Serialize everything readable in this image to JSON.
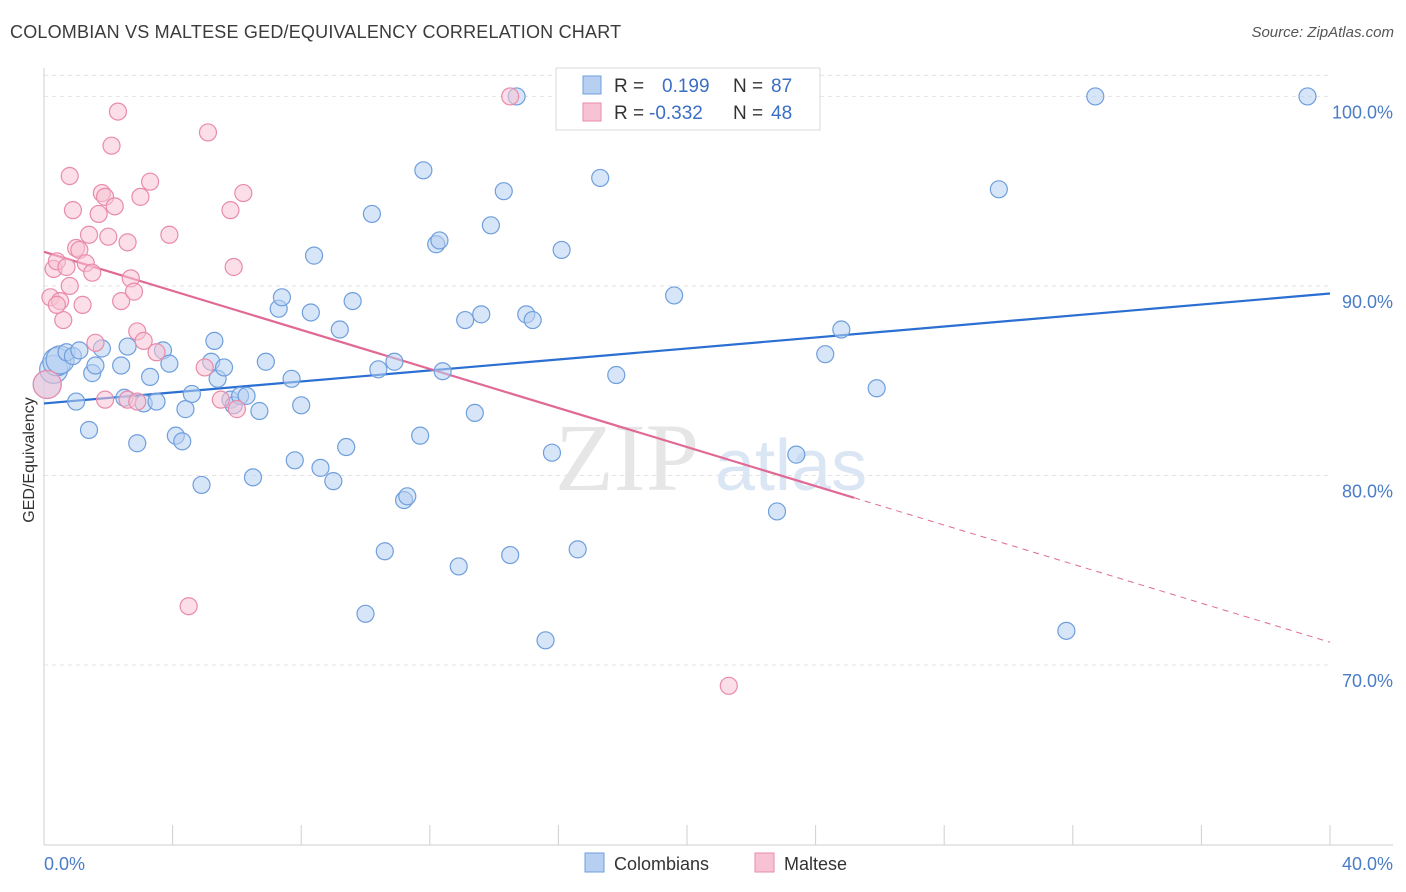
{
  "title": "COLOMBIAN VS MALTESE GED/EQUIVALENCY CORRELATION CHART",
  "source": "Source: ZipAtlas.com",
  "watermark": {
    "zip": "ZIP",
    "atlas": "atlas"
  },
  "colors": {
    "blue": "#6f9fdc",
    "blue_fill": "#b7d0f2",
    "blue_line": "#2a6fd1",
    "pink": "#e98bab",
    "pink_fill": "#f7c3d4",
    "pink_line": "#e06a95",
    "grid": "#e3e3e3",
    "tick": "#4a7cc7"
  },
  "legend": {
    "rows": [
      {
        "r_label": "R =",
        "r_value": "0.199",
        "n_label": "N =",
        "n_value": "87",
        "series": "Colombians"
      },
      {
        "r_label": "R =",
        "r_value": "-0.332",
        "n_label": "N =",
        "n_value": "48",
        "series": "Maltese"
      }
    ]
  },
  "chart_data": {
    "type": "scatter",
    "title": "COLOMBIAN VS MALTESE GED/EQUIVALENCY CORRELATION CHART",
    "xlabel": "",
    "ylabel": "GED/Equivalency",
    "xlim": [
      0,
      40
    ],
    "ylim": [
      60.5,
      101.5
    ],
    "x_tick_labels": [
      {
        "value": 0,
        "label": "0.0%"
      },
      {
        "value": 40,
        "label": "40.0%"
      }
    ],
    "y_tick_labels": [
      {
        "value": 100,
        "label": "100.0%"
      },
      {
        "value": 90,
        "label": "90.0%"
      },
      {
        "value": 80,
        "label": "80.0%"
      },
      {
        "value": 70,
        "label": "70.0%"
      }
    ],
    "x_minor_ticks": [
      0,
      4,
      8,
      12,
      16,
      20,
      24,
      28,
      32,
      36,
      40
    ],
    "grid": true,
    "legend_position": "top-center",
    "series": [
      {
        "name": "Colombians",
        "color": "#6f9fdc",
        "trend": {
          "x": [
            0,
            40
          ],
          "y": [
            83.8,
            89.6
          ],
          "dashed_from": null
        },
        "points": [
          [
            0.1,
            84.8
          ],
          [
            0.3,
            85.6
          ],
          [
            0.4,
            86.0
          ],
          [
            0.5,
            86.1
          ],
          [
            0.7,
            86.5
          ],
          [
            0.9,
            86.3
          ],
          [
            1.0,
            83.9
          ],
          [
            1.1,
            86.6
          ],
          [
            1.4,
            82.4
          ],
          [
            1.5,
            85.4
          ],
          [
            1.6,
            85.8
          ],
          [
            1.8,
            86.7
          ],
          [
            2.4,
            85.8
          ],
          [
            2.5,
            84.1
          ],
          [
            2.6,
            86.8
          ],
          [
            2.9,
            81.7
          ],
          [
            3.1,
            83.8
          ],
          [
            3.3,
            85.2
          ],
          [
            3.5,
            83.9
          ],
          [
            3.7,
            86.6
          ],
          [
            3.9,
            85.9
          ],
          [
            4.1,
            82.1
          ],
          [
            4.3,
            81.8
          ],
          [
            4.4,
            83.5
          ],
          [
            4.6,
            84.3
          ],
          [
            4.9,
            79.5
          ],
          [
            5.2,
            86.0
          ],
          [
            5.3,
            87.1
          ],
          [
            5.4,
            85.1
          ],
          [
            5.6,
            85.7
          ],
          [
            5.8,
            84.0
          ],
          [
            5.9,
            83.7
          ],
          [
            6.1,
            84.2
          ],
          [
            6.3,
            84.2
          ],
          [
            6.5,
            79.9
          ],
          [
            6.7,
            83.4
          ],
          [
            6.9,
            86.0
          ],
          [
            7.3,
            88.8
          ],
          [
            7.4,
            89.4
          ],
          [
            7.7,
            85.1
          ],
          [
            7.8,
            80.8
          ],
          [
            8.0,
            83.7
          ],
          [
            8.3,
            88.6
          ],
          [
            8.4,
            91.6
          ],
          [
            8.6,
            80.4
          ],
          [
            9.0,
            79.7
          ],
          [
            9.2,
            87.7
          ],
          [
            9.4,
            81.5
          ],
          [
            9.6,
            89.2
          ],
          [
            10.0,
            72.7
          ],
          [
            10.2,
            93.8
          ],
          [
            10.4,
            85.6
          ],
          [
            10.6,
            76.0
          ],
          [
            10.9,
            86.0
          ],
          [
            11.2,
            78.7
          ],
          [
            11.3,
            78.9
          ],
          [
            11.7,
            82.1
          ],
          [
            11.8,
            96.1
          ],
          [
            12.2,
            92.2
          ],
          [
            12.3,
            92.4
          ],
          [
            12.4,
            85.5
          ],
          [
            12.9,
            75.2
          ],
          [
            13.1,
            88.2
          ],
          [
            13.4,
            83.3
          ],
          [
            13.6,
            88.5
          ],
          [
            13.9,
            93.2
          ],
          [
            14.3,
            95.0
          ],
          [
            14.5,
            75.8
          ],
          [
            14.7,
            100.0
          ],
          [
            15.0,
            88.5
          ],
          [
            15.2,
            88.2
          ],
          [
            15.6,
            71.3
          ],
          [
            15.8,
            81.2
          ],
          [
            16.1,
            91.9
          ],
          [
            16.6,
            76.1
          ],
          [
            17.3,
            95.7
          ],
          [
            17.8,
            85.3
          ],
          [
            19.6,
            89.5
          ],
          [
            22.8,
            78.1
          ],
          [
            23.4,
            81.1
          ],
          [
            24.3,
            86.4
          ],
          [
            24.8,
            87.7
          ],
          [
            25.9,
            84.6
          ],
          [
            29.7,
            95.1
          ],
          [
            31.8,
            71.8
          ],
          [
            32.7,
            100.0
          ],
          [
            39.3,
            100.0
          ]
        ]
      },
      {
        "name": "Maltese",
        "color": "#e98bab",
        "trend": {
          "x": [
            0,
            40
          ],
          "y": [
            91.8,
            71.2
          ],
          "dashed_from": 25.2
        },
        "points": [
          [
            0.1,
            84.8
          ],
          [
            0.2,
            89.4
          ],
          [
            0.3,
            90.9
          ],
          [
            0.4,
            91.3
          ],
          [
            0.5,
            89.2
          ],
          [
            0.6,
            88.2
          ],
          [
            0.7,
            91.0
          ],
          [
            0.8,
            90.0
          ],
          [
            0.8,
            95.8
          ],
          [
            0.9,
            94.0
          ],
          [
            1.0,
            92.0
          ],
          [
            1.1,
            91.9
          ],
          [
            1.2,
            89.0
          ],
          [
            1.3,
            91.2
          ],
          [
            1.4,
            92.7
          ],
          [
            1.5,
            90.7
          ],
          [
            1.6,
            87.0
          ],
          [
            1.7,
            93.8
          ],
          [
            1.8,
            94.9
          ],
          [
            1.9,
            94.7
          ],
          [
            2.0,
            92.6
          ],
          [
            2.1,
            97.4
          ],
          [
            2.2,
            94.2
          ],
          [
            2.3,
            99.2
          ],
          [
            2.4,
            89.2
          ],
          [
            2.6,
            84.0
          ],
          [
            2.6,
            92.3
          ],
          [
            2.7,
            90.4
          ],
          [
            2.8,
            89.7
          ],
          [
            2.9,
            87.6
          ],
          [
            3.0,
            94.7
          ],
          [
            3.1,
            87.1
          ],
          [
            3.3,
            95.5
          ],
          [
            3.5,
            86.5
          ],
          [
            3.9,
            92.7
          ],
          [
            4.5,
            73.1
          ],
          [
            5.0,
            85.7
          ],
          [
            5.1,
            98.1
          ],
          [
            5.5,
            84.0
          ],
          [
            5.8,
            94.0
          ],
          [
            5.9,
            91.0
          ],
          [
            6.0,
            83.5
          ],
          [
            6.2,
            94.9
          ],
          [
            14.5,
            100.0
          ],
          [
            21.3,
            68.9
          ],
          [
            2.9,
            83.9
          ],
          [
            1.9,
            84.0
          ],
          [
            0.4,
            89.0
          ]
        ]
      }
    ]
  }
}
